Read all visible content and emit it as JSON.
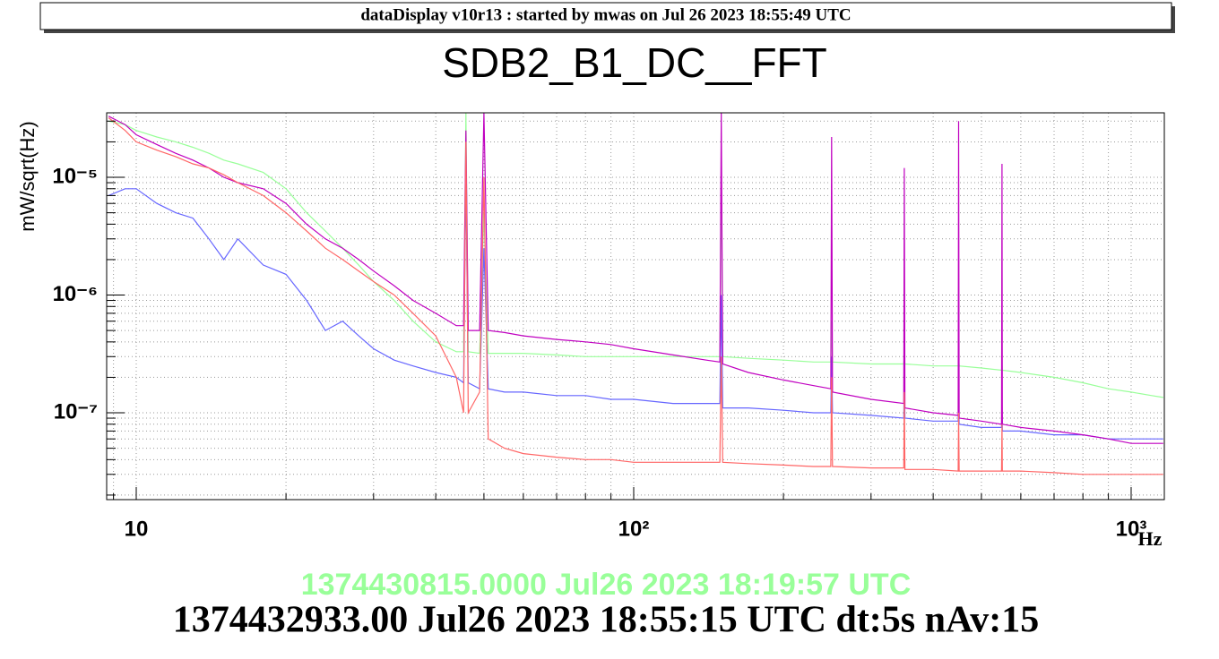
{
  "header": "dataDisplay v10r13 : started by mwas on Jul 26 2023 18:55:49 UTC",
  "chart_data": {
    "type": "line",
    "title": "SDB2_B1_DC__FFT",
    "ylabel": "mW/sqrt(Hz)",
    "xlabel": "Hz",
    "xlog": true,
    "ylog": true,
    "grid": true,
    "xlim": [
      8.72,
      1166
    ],
    "ylim": [
      1.83e-08,
      3.53e-05
    ],
    "xticks": [
      10,
      {
        "value": 100,
        "label": "10²"
      },
      {
        "value": 1000,
        "label": "10³"
      }
    ],
    "x_minor_ticks": [
      9,
      20,
      30,
      40,
      50,
      60,
      70,
      80,
      90,
      200,
      300,
      400,
      500,
      600,
      700,
      800,
      900
    ],
    "yticks": [
      {
        "value": 1e-07,
        "label": "10⁻⁷"
      },
      {
        "value": 1e-06,
        "label": "10⁻⁶"
      },
      {
        "value": 1e-05,
        "label": "10⁻⁵"
      }
    ],
    "y_minor_ticks": [
      2e-08,
      3e-08,
      4e-08,
      5e-08,
      6e-08,
      7e-08,
      8e-08,
      9e-08,
      2e-07,
      3e-07,
      4e-07,
      5e-07,
      6e-07,
      7e-07,
      8e-07,
      9e-07,
      2e-06,
      3e-06,
      4e-06,
      5e-06,
      6e-06,
      7e-06,
      8e-06,
      9e-06,
      2e-05,
      3e-05
    ],
    "x": [
      8.8,
      9.5,
      10,
      11,
      12,
      13,
      14,
      15,
      16,
      18,
      20,
      22,
      24,
      26,
      28,
      30,
      33,
      36,
      40,
      44,
      45.5,
      46,
      46.5,
      49,
      50,
      51,
      55,
      60,
      70,
      80,
      90,
      100,
      120,
      140,
      149,
      150,
      151,
      170,
      200,
      230,
      249,
      250,
      251,
      300,
      349,
      350,
      351,
      400,
      449,
      450,
      451,
      500,
      549,
      550,
      551,
      600,
      700,
      800,
      900,
      1000,
      1100,
      1160
    ],
    "series": [
      {
        "color": "#99ff99",
        "values": [
          3e-05,
          2.8e-05,
          2.5e-05,
          2.2e-05,
          2e-05,
          1.8e-05,
          1.6e-05,
          1.4e-05,
          1.3e-05,
          1.1e-05,
          8e-06,
          5e-06,
          3.5e-06,
          2.5e-06,
          1.8e-06,
          1.3e-06,
          9e-07,
          6e-07,
          4e-07,
          3.3e-07,
          3.3e-07,
          3.5e-05,
          3.3e-07,
          3.2e-07,
          5e-06,
          3.2e-07,
          3.2e-07,
          3.2e-07,
          3.1e-07,
          3e-07,
          3e-07,
          3e-07,
          3e-07,
          3e-07,
          3e-07,
          1.2e-05,
          3e-07,
          2.9e-07,
          2.8e-07,
          2.7e-07,
          2.7e-07,
          6e-07,
          2.7e-07,
          2.6e-07,
          2.6e-07,
          3e-07,
          2.6e-07,
          2.5e-07,
          2.5e-07,
          3e-07,
          2.5e-07,
          2.4e-07,
          2.3e-07,
          2.6e-07,
          2.3e-07,
          2.2e-07,
          2e-07,
          1.8e-07,
          1.6e-07,
          1.5e-07,
          1.4e-07,
          1.35e-07
        ]
      },
      {
        "color": "#6666ff",
        "values": [
          7e-06,
          8e-06,
          8e-06,
          6e-06,
          5e-06,
          4.5e-06,
          3e-06,
          2e-06,
          3e-06,
          1.8e-06,
          1.5e-06,
          9e-07,
          5e-07,
          6e-07,
          4.5e-07,
          3.5e-07,
          2.8e-07,
          2.5e-07,
          2.2e-07,
          2e-07,
          1.8e-07,
          1e-05,
          1.8e-07,
          1.6e-07,
          2.5e-06,
          1.6e-07,
          1.5e-07,
          1.5e-07,
          1.4e-07,
          1.4e-07,
          1.3e-07,
          1.3e-07,
          1.2e-07,
          1.2e-07,
          1.2e-07,
          1e-06,
          1.1e-07,
          1.1e-07,
          1.05e-07,
          1e-07,
          1e-07,
          3e-07,
          1e-07,
          9.5e-08,
          9e-08,
          2e-07,
          9e-08,
          8.5e-08,
          8.5e-08,
          1.5e-07,
          8e-08,
          7.5e-08,
          7.5e-08,
          1.2e-07,
          7e-08,
          7e-08,
          6.5e-08,
          6.5e-08,
          6e-08,
          6e-08,
          6e-08,
          6e-08
        ]
      },
      {
        "color": "#c000c0",
        "values": [
          3.3e-05,
          2.8e-05,
          2.3e-05,
          1.9e-05,
          1.6e-05,
          1.4e-05,
          1.2e-05,
          1e-05,
          9e-06,
          8e-06,
          6e-06,
          4e-06,
          3e-06,
          2.5e-06,
          2e-06,
          1.6e-06,
          1.2e-06,
          9e-07,
          7e-07,
          5.5e-07,
          5.5e-07,
          2.5e-05,
          5e-07,
          5e-07,
          3.5e-05,
          5e-07,
          4.8e-07,
          4.5e-07,
          4.2e-07,
          4e-07,
          3.8e-07,
          3.5e-07,
          3.1e-07,
          2.8e-07,
          2.7e-07,
          3.5e-05,
          2.6e-07,
          2.2e-07,
          1.9e-07,
          1.7e-07,
          1.6e-07,
          2.2e-05,
          1.5e-07,
          1.3e-07,
          1.2e-07,
          1.2e-05,
          1.1e-07,
          1e-07,
          9.5e-08,
          3e-05,
          9e-08,
          8.5e-08,
          8e-08,
          1.3e-05,
          8e-08,
          7.5e-08,
          7e-08,
          6.5e-08,
          6e-08,
          5.5e-08,
          5.5e-08,
          5.5e-08
        ]
      },
      {
        "color": "#ff6666",
        "values": [
          3.2e-05,
          2.5e-05,
          2e-05,
          1.7e-05,
          1.5e-05,
          1.3e-05,
          1.2e-05,
          1.05e-05,
          9e-06,
          7e-06,
          5e-06,
          3.5e-06,
          2.5e-06,
          2e-06,
          1.6e-06,
          1.3e-06,
          1e-06,
          7e-07,
          4.5e-07,
          2e-07,
          1e-07,
          2e-05,
          1e-07,
          1.5e-07,
          1e-05,
          6e-08,
          5e-08,
          4.5e-08,
          4.2e-08,
          4e-08,
          4e-08,
          3.8e-08,
          3.8e-08,
          3.8e-08,
          3.8e-08,
          3e-07,
          3.8e-08,
          3.7e-08,
          3.6e-08,
          3.5e-08,
          3.5e-08,
          2e-07,
          3.5e-08,
          3.4e-08,
          3.4e-08,
          1.5e-07,
          3.3e-08,
          3.3e-08,
          3.2e-08,
          1e-07,
          3.2e-08,
          3.2e-08,
          3.2e-08,
          8e-08,
          3.2e-08,
          3.2e-08,
          3.1e-08,
          3e-08,
          3e-08,
          3e-08,
          3e-08,
          3e-08
        ]
      }
    ]
  },
  "footer": {
    "line1": "1374430815.0000 Jul26 2023 18:19:57 UTC",
    "line2": "1374432933.00 Jul26 2023 18:55:15 UTC dt:5s nAv:15"
  }
}
